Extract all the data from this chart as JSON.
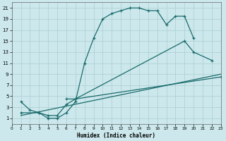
{
  "xlabel": "Humidex (Indice chaleur)",
  "bg_color": "#cce8ec",
  "grid_color": "#aacdd2",
  "line_color": "#1a6b6b",
  "xlim": [
    0,
    23
  ],
  "ylim": [
    0,
    22
  ],
  "xticks": [
    0,
    1,
    2,
    3,
    4,
    5,
    6,
    7,
    8,
    9,
    10,
    11,
    12,
    13,
    14,
    15,
    16,
    17,
    18,
    19,
    20,
    21,
    22,
    23
  ],
  "yticks": [
    1,
    3,
    5,
    7,
    9,
    11,
    13,
    15,
    17,
    19,
    21
  ],
  "curve1_x": [
    1,
    2,
    3,
    4,
    5,
    6,
    7,
    8,
    9,
    10,
    11,
    12,
    13,
    14,
    15,
    16,
    17,
    18,
    19,
    20
  ],
  "curve1_y": [
    4.0,
    2.5,
    2.0,
    1.0,
    1.0,
    2.0,
    4.0,
    11.0,
    15.5,
    19.0,
    20.0,
    20.5,
    21.0,
    21.0,
    20.5,
    20.5,
    18.0,
    19.5,
    19.5,
    15.5
  ],
  "curve2_x": [
    6,
    7,
    19,
    20,
    22
  ],
  "curve2_y": [
    4.5,
    4.5,
    15.0,
    13.0,
    11.5
  ],
  "curve3_x": [
    1,
    23
  ],
  "curve3_y": [
    1.5,
    9.0
  ],
  "curve4_x": [
    1,
    3,
    4,
    5,
    6,
    7,
    23
  ],
  "curve4_y": [
    2.0,
    2.0,
    1.5,
    1.5,
    3.5,
    4.5,
    8.5
  ]
}
